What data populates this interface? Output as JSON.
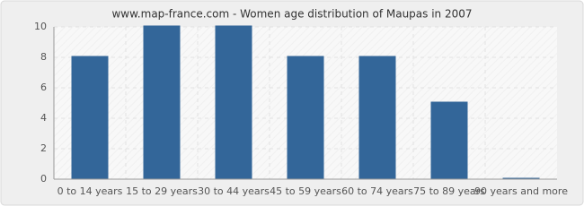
{
  "chart_data": {
    "type": "bar",
    "title": "www.map-france.com - Women age distribution of Maupas in 2007",
    "categories": [
      "0 to 14 years",
      "15 to 29 years",
      "30 to 44 years",
      "45 to 59 years",
      "60 to 74 years",
      "75 to 89 years",
      "90 years and more"
    ],
    "values": [
      8,
      10,
      10,
      8,
      8,
      5,
      0
    ],
    "color": "#336699",
    "ylim": [
      0,
      10
    ],
    "yticks": [
      0,
      2,
      4,
      6,
      8,
      10
    ],
    "grid": true
  }
}
